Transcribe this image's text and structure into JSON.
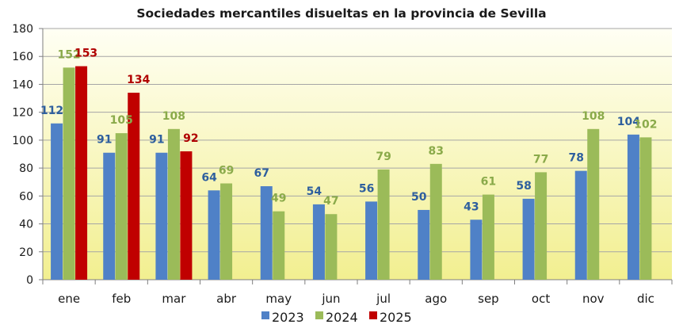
{
  "chart_data": {
    "type": "bar",
    "title": "Sociedades mercantiles disueltas en la provincia de Sevilla",
    "xlabel": "",
    "ylabel": "",
    "ylim": [
      0,
      180
    ],
    "yticks": [
      0,
      20,
      40,
      60,
      80,
      100,
      120,
      140,
      160,
      180
    ],
    "grid": true,
    "legend": "bottom",
    "categories": [
      "ene",
      "feb",
      "mar",
      "abr",
      "may",
      "jun",
      "jul",
      "ago",
      "sep",
      "oct",
      "nov",
      "dic"
    ],
    "series": [
      {
        "name": "2023",
        "color": "#4f81c7",
        "label_color": "#2e5f9e",
        "values": [
          112,
          91,
          91,
          64,
          67,
          54,
          56,
          50,
          43,
          58,
          78,
          104
        ]
      },
      {
        "name": "2024",
        "color": "#9bbb59",
        "label_color": "#8aaa4a",
        "values": [
          152,
          105,
          108,
          69,
          49,
          47,
          79,
          83,
          61,
          77,
          108,
          102
        ]
      },
      {
        "name": "2025",
        "color": "#c00000",
        "label_color": "#b00000",
        "values": [
          153,
          134,
          92,
          null,
          null,
          null,
          null,
          null,
          null,
          null,
          null,
          null
        ]
      }
    ],
    "colors": {
      "background_top": "#fffff4",
      "background_bottom": "#f2ef90",
      "axis": "#7f7f7f",
      "grid": "#a6a6a6"
    }
  }
}
